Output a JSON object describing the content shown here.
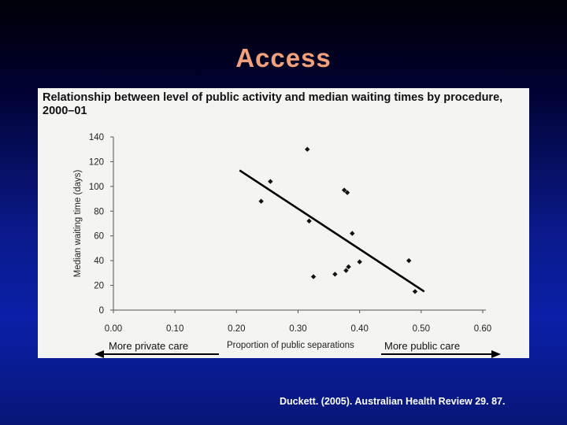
{
  "slide": {
    "title": "Access",
    "citation": "Duckett. (2005). Australian Health Review 29. 87.",
    "title_color": "#f2a07a"
  },
  "arrows": {
    "left_label": "More private care",
    "right_label": "More public care"
  },
  "chart_data": {
    "type": "scatter",
    "title": "Relationship between level of public activity and median waiting times by procedure, 2000–01",
    "xlabel": "Proportion of public separations",
    "ylabel": "Median waiting time (days)",
    "xlim": [
      0.0,
      0.6
    ],
    "ylim": [
      0,
      140
    ],
    "xticks": [
      "0.00",
      "0.10",
      "0.20",
      "0.30",
      "0.40",
      "0.50",
      "0.60"
    ],
    "yticks": [
      "0",
      "20",
      "40",
      "60",
      "80",
      "100",
      "120",
      "140"
    ],
    "points": [
      {
        "x": 0.24,
        "y": 88
      },
      {
        "x": 0.255,
        "y": 104
      },
      {
        "x": 0.315,
        "y": 130
      },
      {
        "x": 0.318,
        "y": 72
      },
      {
        "x": 0.325,
        "y": 27
      },
      {
        "x": 0.36,
        "y": 29
      },
      {
        "x": 0.375,
        "y": 97
      },
      {
        "x": 0.38,
        "y": 95
      },
      {
        "x": 0.378,
        "y": 32
      },
      {
        "x": 0.382,
        "y": 35
      },
      {
        "x": 0.388,
        "y": 62
      },
      {
        "x": 0.4,
        "y": 39
      },
      {
        "x": 0.48,
        "y": 40
      },
      {
        "x": 0.49,
        "y": 15
      }
    ],
    "trendline": [
      {
        "x": 0.205,
        "y": 113
      },
      {
        "x": 0.505,
        "y": 15
      }
    ],
    "grid": false
  }
}
